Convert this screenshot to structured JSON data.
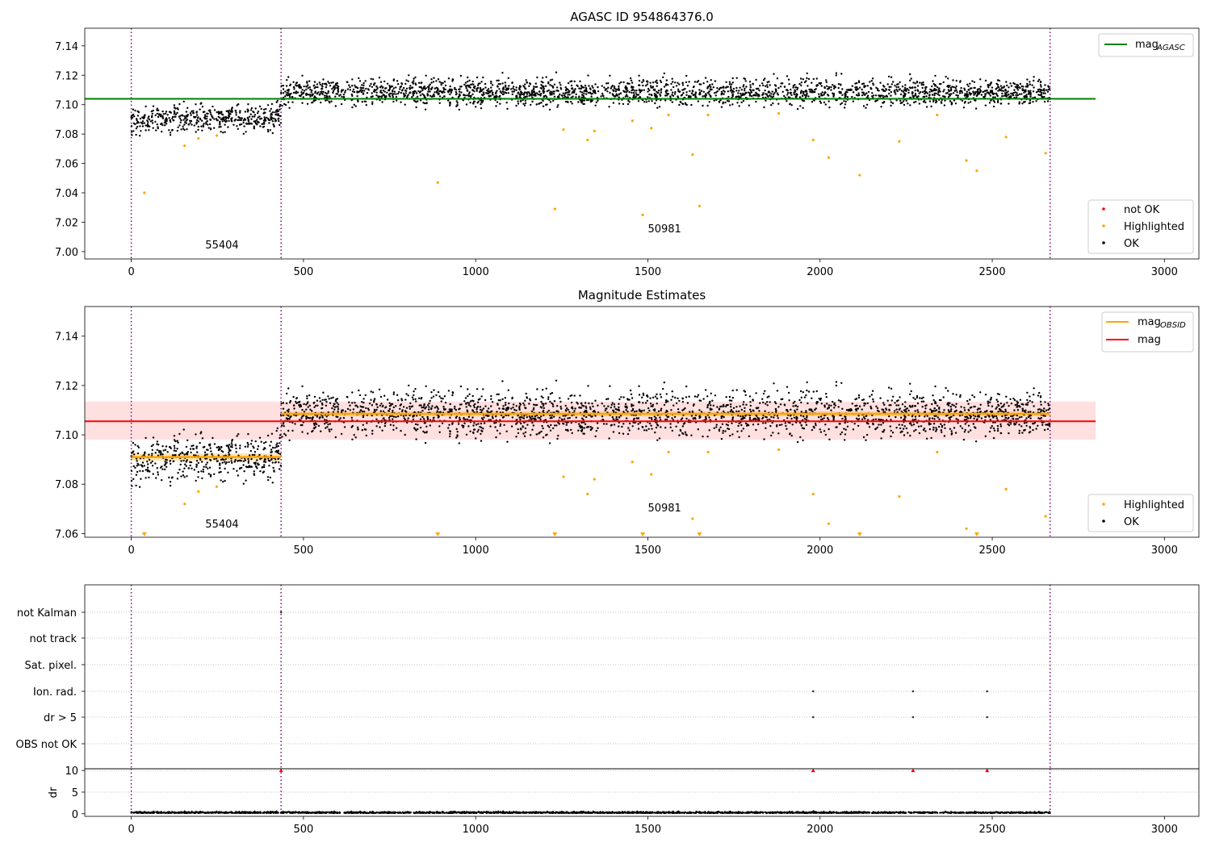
{
  "chart_data": [
    {
      "type": "scatter",
      "title": "AGASC ID 954864376.0",
      "xlim": [
        -135,
        3100
      ],
      "ylim": [
        6.995,
        7.152
      ],
      "xticks": [
        0,
        500,
        1000,
        1500,
        2000,
        2500,
        3000
      ],
      "yticks": [
        "7.00",
        "7.02",
        "7.04",
        "7.06",
        "7.08",
        "7.10",
        "7.12",
        "7.14"
      ],
      "grid": false,
      "vlines": [
        0,
        435,
        2668
      ],
      "obs_labels": [
        {
          "x": 215,
          "y": 7.002,
          "text": "55404"
        },
        {
          "x": 1500,
          "y": 7.013,
          "text": "50981"
        }
      ],
      "hlines": [
        {
          "name": "mag",
          "sub": "AGASC",
          "y": 7.104,
          "x_range": [
            -135,
            2800
          ],
          "color": "#008000"
        }
      ],
      "segments": [
        {
          "x_range": [
            0,
            435
          ],
          "level": 7.0905,
          "spread": 0.0045
        },
        {
          "x_range": [
            435,
            2668
          ],
          "level": 7.1085,
          "spread": 0.0045
        }
      ],
      "highlighted": [
        [
          38,
          7.04
        ],
        [
          155,
          7.072
        ],
        [
          195,
          7.077
        ],
        [
          248,
          7.079
        ],
        [
          890,
          7.047
        ],
        [
          1230,
          7.029
        ],
        [
          1255,
          7.083
        ],
        [
          1325,
          7.076
        ],
        [
          1345,
          7.082
        ],
        [
          1455,
          7.089
        ],
        [
          1485,
          7.025
        ],
        [
          1510,
          7.084
        ],
        [
          1560,
          7.093
        ],
        [
          1630,
          7.066
        ],
        [
          1650,
          7.031
        ],
        [
          1675,
          7.093
        ],
        [
          1880,
          7.094
        ],
        [
          1980,
          7.076
        ],
        [
          2025,
          7.064
        ],
        [
          2115,
          7.052
        ],
        [
          2230,
          7.075
        ],
        [
          2340,
          7.093
        ],
        [
          2425,
          7.062
        ],
        [
          2455,
          7.055
        ],
        [
          2540,
          7.078
        ],
        [
          2655,
          7.067
        ]
      ],
      "legend": {
        "series": [
          {
            "name": "not OK",
            "color": "#ff0000"
          },
          {
            "name": "Highlighted",
            "color": "#ffa500"
          },
          {
            "name": "OK",
            "color": "#000000"
          }
        ],
        "line_legend": [
          {
            "name": "mag",
            "sub": "AGASC",
            "color": "#008000"
          }
        ]
      }
    },
    {
      "type": "scatter",
      "title": "Magnitude Estimates",
      "xlim": [
        -135,
        3100
      ],
      "ylim": [
        7.0585,
        7.152
      ],
      "xticks": [
        0,
        500,
        1000,
        1500,
        2000,
        2500,
        3000
      ],
      "yticks": [
        "7.06",
        "7.08",
        "7.10",
        "7.12",
        "7.14"
      ],
      "grid": false,
      "vlines": [
        0,
        435,
        2668
      ],
      "obs_labels": [
        {
          "x": 215,
          "y": 7.0625,
          "text": "55404"
        },
        {
          "x": 1500,
          "y": 7.069,
          "text": "50981"
        }
      ],
      "mag": {
        "name": "mag",
        "y": 7.1055,
        "band": [
          7.098,
          7.1135
        ],
        "x_range": [
          -135,
          2800
        ],
        "color": "#ff0000"
      },
      "mag_obsid": [
        {
          "x_range": [
            0,
            435
          ],
          "y": 7.091,
          "band": [
            7.0895,
            7.0925
          ]
        },
        {
          "x_range": [
            435,
            2668
          ],
          "y": 7.1085,
          "band": [
            7.1075,
            7.1095
          ]
        }
      ],
      "segments": [
        {
          "x_range": [
            0,
            435
          ],
          "level": 7.0905,
          "spread": 0.0045
        },
        {
          "x_range": [
            435,
            2668
          ],
          "level": 7.1085,
          "spread": 0.0045
        }
      ],
      "highlighted": [
        [
          155,
          7.072
        ],
        [
          195,
          7.077
        ],
        [
          248,
          7.079
        ],
        [
          1255,
          7.083
        ],
        [
          1325,
          7.076
        ],
        [
          1345,
          7.082
        ],
        [
          1455,
          7.089
        ],
        [
          1510,
          7.084
        ],
        [
          1560,
          7.093
        ],
        [
          1630,
          7.066
        ],
        [
          1675,
          7.093
        ],
        [
          1880,
          7.094
        ],
        [
          1980,
          7.076
        ],
        [
          2025,
          7.064
        ],
        [
          2230,
          7.075
        ],
        [
          2340,
          7.093
        ],
        [
          2425,
          7.062
        ],
        [
          2540,
          7.078
        ],
        [
          2655,
          7.067
        ]
      ],
      "off_scale_low": [
        38,
        890,
        1230,
        1485,
        1650,
        2115,
        2455
      ],
      "legend": {
        "series": [
          {
            "name": "Highlighted",
            "color": "#ffa500"
          },
          {
            "name": "OK",
            "color": "#000000"
          }
        ],
        "line_legend": [
          {
            "name": "mag",
            "sub": "OBSID",
            "color": "#ffa500"
          },
          {
            "name": "mag",
            "sub": "",
            "color": "#ff0000"
          }
        ]
      }
    },
    {
      "type": "scatter",
      "title": "",
      "xlim": [
        -135,
        3100
      ],
      "vlines": [
        0,
        435,
        2668
      ],
      "flags": [
        "not Kalman",
        "not track",
        "Sat. pixel.",
        "Ion. rad.",
        "dr > 5",
        "OBS not OK"
      ],
      "flag_points": [
        {
          "flag": "not Kalman",
          "x": [
            435
          ]
        },
        {
          "flag": "Ion. rad.",
          "x": [
            1980,
            2270,
            2485
          ]
        },
        {
          "flag": "dr > 5",
          "x": [
            1980,
            2270,
            2485
          ]
        }
      ]
    },
    {
      "type": "scatter",
      "title": "",
      "xlim": [
        -135,
        3100
      ],
      "ylim": [
        -0.6,
        10.4
      ],
      "xticks": [
        0,
        500,
        1000,
        1500,
        2000,
        2500,
        3000
      ],
      "yticks": [
        "0",
        "5",
        "10"
      ],
      "ylabel": "dr",
      "vlines": [
        0,
        435,
        2668
      ],
      "clipped_high": [
        435,
        1980,
        2270,
        2485
      ],
      "baseline": {
        "x_range": [
          0,
          2668
        ],
        "level": 0.15,
        "spread": 0.15
      }
    }
  ]
}
